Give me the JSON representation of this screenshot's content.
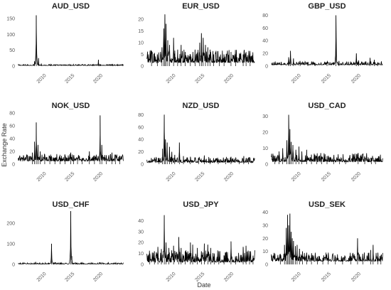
{
  "figure": {
    "xlabel": "Date",
    "ylabel": "Exchange Rate"
  },
  "chart_data": [
    {
      "type": "line",
      "title": "AUD_USD",
      "xlim": [
        2005.5,
        2024.5
      ],
      "x_ticks": [
        2010,
        2015,
        2020
      ],
      "x_tick_labels": [
        "2010",
        "2015",
        "2020"
      ],
      "ylim": [
        0,
        170
      ],
      "y_ticks": [
        0,
        50,
        100,
        150
      ],
      "y_tick_labels": [
        "0",
        "50",
        "100",
        "150"
      ],
      "base": 2,
      "noise": 1.5,
      "spikes": [
        [
          2008.6,
          15
        ],
        [
          2008.9,
          160
        ],
        [
          2009.3,
          25
        ],
        [
          2009.8,
          8
        ],
        [
          2011.5,
          7
        ],
        [
          2012.2,
          5
        ],
        [
          2015.0,
          4
        ],
        [
          2019.9,
          20
        ],
        [
          2020.3,
          6
        ],
        [
          2022.0,
          6
        ],
        [
          2023.3,
          5
        ]
      ]
    },
    {
      "type": "line",
      "title": "EUR_USD",
      "xlim": [
        2005.5,
        2024.5
      ],
      "x_ticks": [
        2010,
        2015,
        2020
      ],
      "x_tick_labels": [
        "2010",
        "2015",
        "2020"
      ],
      "ylim": [
        0,
        23
      ],
      "y_ticks": [
        0,
        5,
        10,
        15,
        20
      ],
      "y_tick_labels": [
        "0",
        "5",
        "10",
        "15",
        "20"
      ],
      "base": 1.5,
      "noise": 2.5,
      "spikes": [
        [
          2006.5,
          3
        ],
        [
          2007.5,
          5
        ],
        [
          2008.3,
          8
        ],
        [
          2008.6,
          16
        ],
        [
          2008.8,
          22
        ],
        [
          2009.0,
          18
        ],
        [
          2009.3,
          11
        ],
        [
          2009.6,
          9
        ],
        [
          2010.3,
          12
        ],
        [
          2011.0,
          7
        ],
        [
          2011.6,
          9
        ],
        [
          2012.3,
          6
        ],
        [
          2013.2,
          5
        ],
        [
          2014.0,
          7
        ],
        [
          2014.8,
          10
        ],
        [
          2015.1,
          14
        ],
        [
          2015.4,
          12
        ],
        [
          2015.8,
          9
        ],
        [
          2016.2,
          8
        ],
        [
          2016.6,
          7
        ],
        [
          2017.2,
          5
        ],
        [
          2018.2,
          4
        ],
        [
          2019.0,
          5
        ],
        [
          2020.2,
          6
        ],
        [
          2021.0,
          3
        ],
        [
          2022.3,
          5
        ],
        [
          2022.8,
          6
        ],
        [
          2023.5,
          4
        ]
      ]
    },
    {
      "type": "line",
      "title": "GBP_USD",
      "xlim": [
        2005.5,
        2024.5
      ],
      "x_ticks": [
        2010,
        2015,
        2020
      ],
      "x_tick_labels": [
        "2010",
        "2015",
        "2020"
      ],
      "ylim": [
        0,
        85
      ],
      "y_ticks": [
        0,
        20,
        40,
        60,
        80
      ],
      "y_tick_labels": [
        "0",
        "20",
        "40",
        "60",
        "80"
      ],
      "base": 2,
      "noise": 2.5,
      "spikes": [
        [
          2008.6,
          14
        ],
        [
          2008.9,
          24
        ],
        [
          2009.4,
          12
        ],
        [
          2010.5,
          8
        ],
        [
          2011.8,
          6
        ],
        [
          2013.0,
          5
        ],
        [
          2015.0,
          6
        ],
        [
          2016.5,
          80
        ],
        [
          2017.0,
          8
        ],
        [
          2019.9,
          20
        ],
        [
          2020.3,
          9
        ],
        [
          2022.2,
          13
        ],
        [
          2022.9,
          10
        ],
        [
          2023.5,
          6
        ]
      ]
    },
    {
      "type": "line",
      "title": "NOK_USD",
      "xlim": [
        2005.5,
        2024.5
      ],
      "x_ticks": [
        2010,
        2015,
        2020
      ],
      "x_tick_labels": [
        "2010",
        "2015",
        "2020"
      ],
      "ylim": [
        0,
        82
      ],
      "y_ticks": [
        0,
        20,
        40,
        60,
        80
      ],
      "y_tick_labels": [
        "0",
        "20",
        "40",
        "60",
        "80"
      ],
      "base": 5,
      "noise": 5,
      "spikes": [
        [
          2008.2,
          18
        ],
        [
          2008.6,
          35
        ],
        [
          2008.9,
          65
        ],
        [
          2009.2,
          30
        ],
        [
          2009.6,
          20
        ],
        [
          2010.4,
          15
        ],
        [
          2011.3,
          12
        ],
        [
          2012.2,
          10
        ],
        [
          2013.1,
          11
        ],
        [
          2014.0,
          14
        ],
        [
          2015.0,
          18
        ],
        [
          2015.5,
          12
        ],
        [
          2016.2,
          10
        ],
        [
          2017.0,
          9
        ],
        [
          2018.3,
          20
        ],
        [
          2019.2,
          9
        ],
        [
          2020.2,
          76
        ],
        [
          2020.5,
          30
        ],
        [
          2021.3,
          14
        ],
        [
          2022.3,
          18
        ],
        [
          2022.9,
          15
        ],
        [
          2023.7,
          13
        ]
      ]
    },
    {
      "type": "line",
      "title": "NZD_USD",
      "xlim": [
        2005.5,
        2024.5
      ],
      "x_ticks": [
        2010,
        2015,
        2020
      ],
      "x_tick_labels": [
        "2010",
        "2015",
        "2020"
      ],
      "ylim": [
        0,
        85
      ],
      "y_ticks": [
        0,
        20,
        40,
        60,
        80
      ],
      "y_tick_labels": [
        "0",
        "20",
        "40",
        "60",
        "80"
      ],
      "base": 3,
      "noise": 4,
      "spikes": [
        [
          2007.8,
          10
        ],
        [
          2008.4,
          25
        ],
        [
          2008.7,
          80
        ],
        [
          2008.9,
          40
        ],
        [
          2009.2,
          35
        ],
        [
          2009.6,
          28
        ],
        [
          2010.0,
          20
        ],
        [
          2010.5,
          15
        ],
        [
          2011.3,
          35
        ],
        [
          2012.0,
          13
        ],
        [
          2013.2,
          12
        ],
        [
          2014.6,
          10
        ],
        [
          2015.6,
          14
        ],
        [
          2016.6,
          9
        ],
        [
          2018.0,
          8
        ],
        [
          2019.3,
          8
        ],
        [
          2020.2,
          12
        ],
        [
          2021.6,
          6
        ],
        [
          2022.4,
          13
        ],
        [
          2023.2,
          10
        ]
      ]
    },
    {
      "type": "line",
      "title": "USD_CAD",
      "xlim": [
        2005.5,
        2024.5
      ],
      "x_ticks": [
        2010,
        2015,
        2020
      ],
      "x_tick_labels": [
        "2010",
        "2015",
        "2020"
      ],
      "ylim": [
        0,
        33
      ],
      "y_ticks": [
        0,
        10,
        20,
        30
      ],
      "y_tick_labels": [
        "0",
        "10",
        "20",
        "30"
      ],
      "base": 1.5,
      "noise": 2.5,
      "spikes": [
        [
          2006.3,
          5
        ],
        [
          2007.0,
          8
        ],
        [
          2007.6,
          10
        ],
        [
          2008.3,
          15
        ],
        [
          2008.6,
          31
        ],
        [
          2008.8,
          22
        ],
        [
          2009.0,
          14
        ],
        [
          2009.3,
          12
        ],
        [
          2009.8,
          9
        ],
        [
          2010.3,
          11
        ],
        [
          2010.8,
          8
        ],
        [
          2011.6,
          9
        ],
        [
          2012.4,
          6
        ],
        [
          2013.3,
          5
        ],
        [
          2014.1,
          4
        ],
        [
          2015.0,
          5
        ],
        [
          2016.1,
          4
        ],
        [
          2017.1,
          3
        ],
        [
          2018.1,
          3
        ],
        [
          2020.2,
          7
        ],
        [
          2021.3,
          3
        ],
        [
          2022.4,
          4
        ],
        [
          2023.1,
          4
        ]
      ]
    },
    {
      "type": "line",
      "title": "USD_CHF",
      "xlim": [
        2005.5,
        2024.5
      ],
      "x_ticks": [
        2010,
        2015,
        2020
      ],
      "x_tick_labels": [
        "2010",
        "2015",
        "2020"
      ],
      "ylim": [
        0,
        265
      ],
      "y_ticks": [
        0,
        100,
        200
      ],
      "y_tick_labels": [
        "0",
        "100",
        "200"
      ],
      "base": 2,
      "noise": 3,
      "spikes": [
        [
          2008.8,
          12
        ],
        [
          2009.5,
          8
        ],
        [
          2011.6,
          100
        ],
        [
          2012.0,
          10
        ],
        [
          2013.2,
          6
        ],
        [
          2015.0,
          258
        ],
        [
          2015.2,
          40
        ],
        [
          2016.1,
          8
        ],
        [
          2017.3,
          5
        ],
        [
          2018.6,
          5
        ],
        [
          2020.2,
          10
        ],
        [
          2021.5,
          5
        ],
        [
          2022.6,
          8
        ],
        [
          2023.3,
          5
        ]
      ]
    },
    {
      "type": "line",
      "title": "USD_JPY",
      "xlim": [
        2005.5,
        2024.5
      ],
      "x_ticks": [
        2010,
        2015,
        2020
      ],
      "x_tick_labels": [
        "2010",
        "2015",
        "2020"
      ],
      "ylim": [
        0,
        50
      ],
      "y_ticks": [
        0,
        10,
        20,
        30,
        40
      ],
      "y_tick_labels": [
        "0",
        "10",
        "20",
        "30",
        "40"
      ],
      "base": 2,
      "noise": 5,
      "spikes": [
        [
          2006.2,
          10
        ],
        [
          2007.0,
          12
        ],
        [
          2007.6,
          16
        ],
        [
          2008.2,
          14
        ],
        [
          2008.7,
          45
        ],
        [
          2009.0,
          20
        ],
        [
          2009.5,
          15
        ],
        [
          2010.3,
          17
        ],
        [
          2011.2,
          25
        ],
        [
          2011.6,
          15
        ],
        [
          2012.3,
          12
        ],
        [
          2013.2,
          20
        ],
        [
          2013.6,
          18
        ],
        [
          2014.4,
          15
        ],
        [
          2015.1,
          12
        ],
        [
          2015.6,
          19
        ],
        [
          2016.2,
          18
        ],
        [
          2016.7,
          15
        ],
        [
          2017.3,
          10
        ],
        [
          2018.1,
          12
        ],
        [
          2019.0,
          8
        ],
        [
          2020.2,
          21
        ],
        [
          2021.0,
          6
        ],
        [
          2022.3,
          16
        ],
        [
          2022.8,
          17
        ],
        [
          2023.4,
          12
        ],
        [
          2024.0,
          8
        ]
      ]
    },
    {
      "type": "line",
      "title": "USD_SEK",
      "xlim": [
        2005.5,
        2024.5
      ],
      "x_ticks": [
        2010,
        2015,
        2020
      ],
      "x_tick_labels": [
        "2010",
        "2015",
        "2020"
      ],
      "ylim": [
        0,
        42
      ],
      "y_ticks": [
        0,
        10,
        20,
        30,
        40
      ],
      "y_tick_labels": [
        "0",
        "10",
        "20",
        "30",
        "40"
      ],
      "base": 2.5,
      "noise": 3,
      "spikes": [
        [
          2007.2,
          8
        ],
        [
          2007.9,
          15
        ],
        [
          2008.2,
          28
        ],
        [
          2008.4,
          38
        ],
        [
          2008.6,
          30
        ],
        [
          2008.8,
          39
        ],
        [
          2009.0,
          25
        ],
        [
          2009.2,
          20
        ],
        [
          2009.4,
          18
        ],
        [
          2009.7,
          14
        ],
        [
          2010.0,
          15
        ],
        [
          2010.4,
          12
        ],
        [
          2010.9,
          10
        ],
        [
          2011.6,
          9
        ],
        [
          2012.4,
          7
        ],
        [
          2013.4,
          6
        ],
        [
          2014.3,
          5
        ],
        [
          2015.2,
          8
        ],
        [
          2016.4,
          6
        ],
        [
          2017.6,
          5
        ],
        [
          2019.0,
          5
        ],
        [
          2020.1,
          20
        ],
        [
          2021.0,
          4
        ],
        [
          2022.3,
          11
        ],
        [
          2022.7,
          15
        ],
        [
          2023.5,
          9
        ],
        [
          2024.0,
          6
        ]
      ]
    }
  ]
}
